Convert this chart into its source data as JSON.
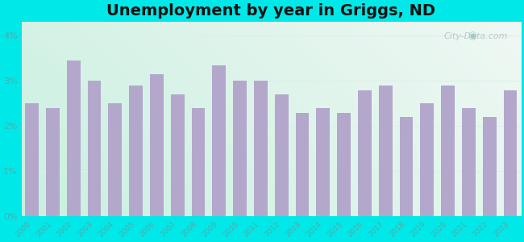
{
  "title": "Unemployment by year in Griggs, ND",
  "years": [
    2000,
    2001,
    2002,
    2003,
    2004,
    2005,
    2006,
    2007,
    2008,
    2009,
    2010,
    2011,
    2012,
    2013,
    2014,
    2015,
    2016,
    2017,
    2018,
    2019,
    2020,
    2021,
    2022,
    2023
  ],
  "values": [
    2.5,
    2.4,
    3.45,
    3.0,
    2.5,
    2.9,
    3.15,
    2.7,
    2.4,
    3.35,
    3.0,
    3.0,
    2.7,
    2.3,
    2.4,
    2.3,
    2.8,
    2.9,
    2.2,
    2.5,
    2.9,
    2.4,
    2.2,
    2.8
  ],
  "bar_color": "#b3a8cc",
  "background_outer": "#00e8e8",
  "background_grad_bottom_left": "#b8ecd8",
  "background_grad_top_right": "#f0f8f4",
  "yticks": [
    0,
    1,
    2,
    3,
    4
  ],
  "ylim": [
    0,
    4.3
  ],
  "title_fontsize": 14,
  "tick_color": "#55aaaa",
  "watermark": "City-Data.com",
  "grid_color": "#ddeeee"
}
